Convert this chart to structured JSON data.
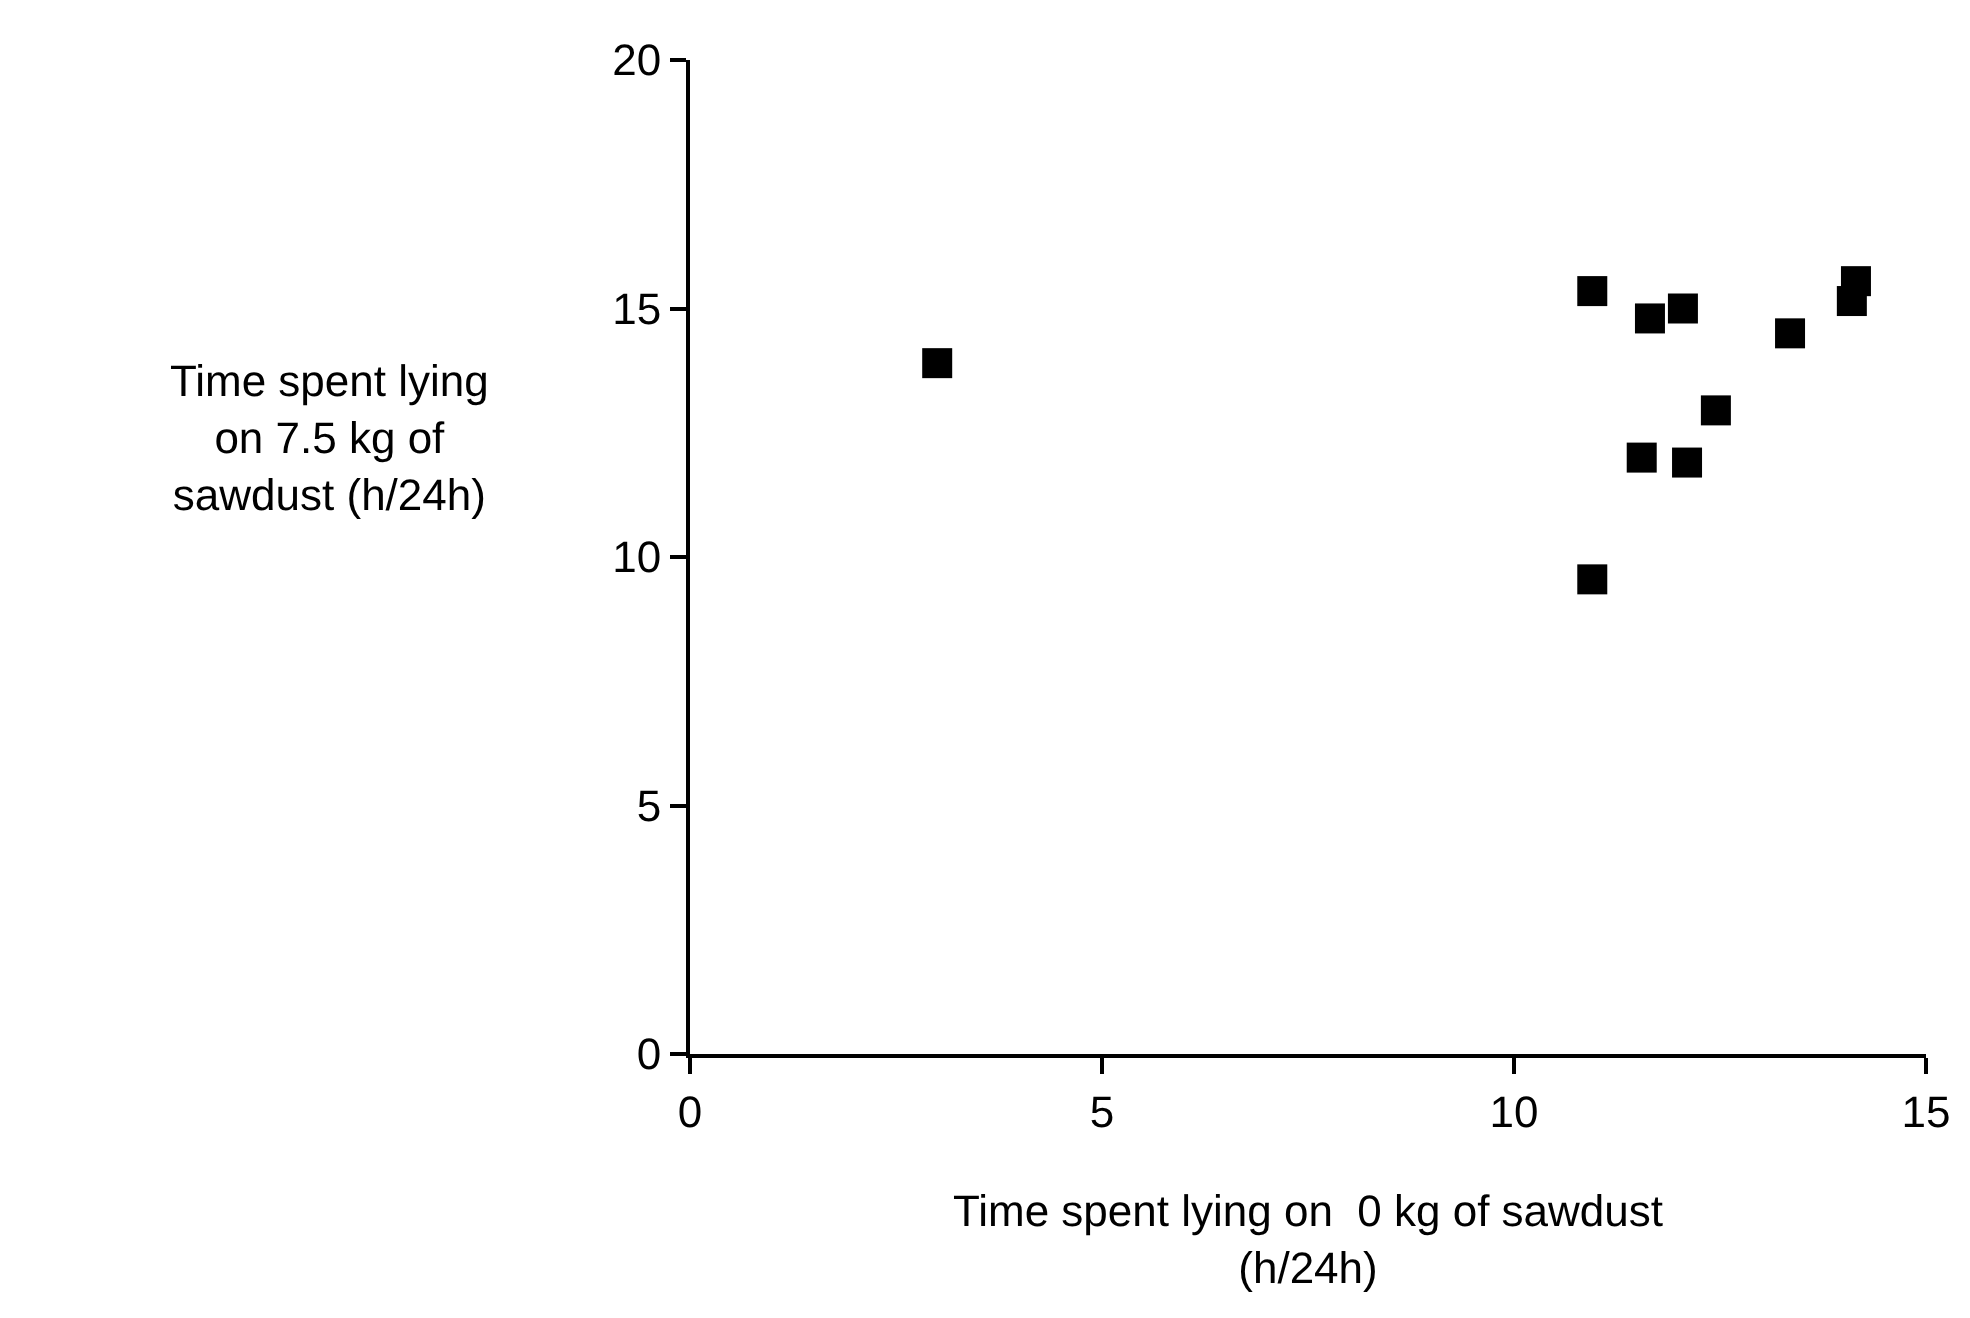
{
  "chart_data": {
    "type": "scatter",
    "xlabel": "Time spent lying on  0 kg of sawdust\n(h/24h)",
    "ylabel": "Time spent lying\non 7.5 kg of\nsawdust (h/24h)",
    "x": [
      3.0,
      10.95,
      11.65,
      12.05,
      11.55,
      12.1,
      12.45,
      10.95,
      13.35,
      14.1,
      14.15
    ],
    "series": [
      {
        "color": "#000000",
        "values": [
          13.9,
          15.35,
          14.8,
          15.0,
          12.0,
          11.9,
          12.95,
          9.55,
          14.5,
          15.15,
          15.55
        ]
      }
    ],
    "marker": "square",
    "grid": false,
    "xlim": [
      0,
      15
    ],
    "xticks": [
      0,
      5,
      10,
      15
    ],
    "ylim": [
      0,
      20
    ],
    "yticks": [
      0,
      5,
      10,
      15,
      20
    ]
  }
}
